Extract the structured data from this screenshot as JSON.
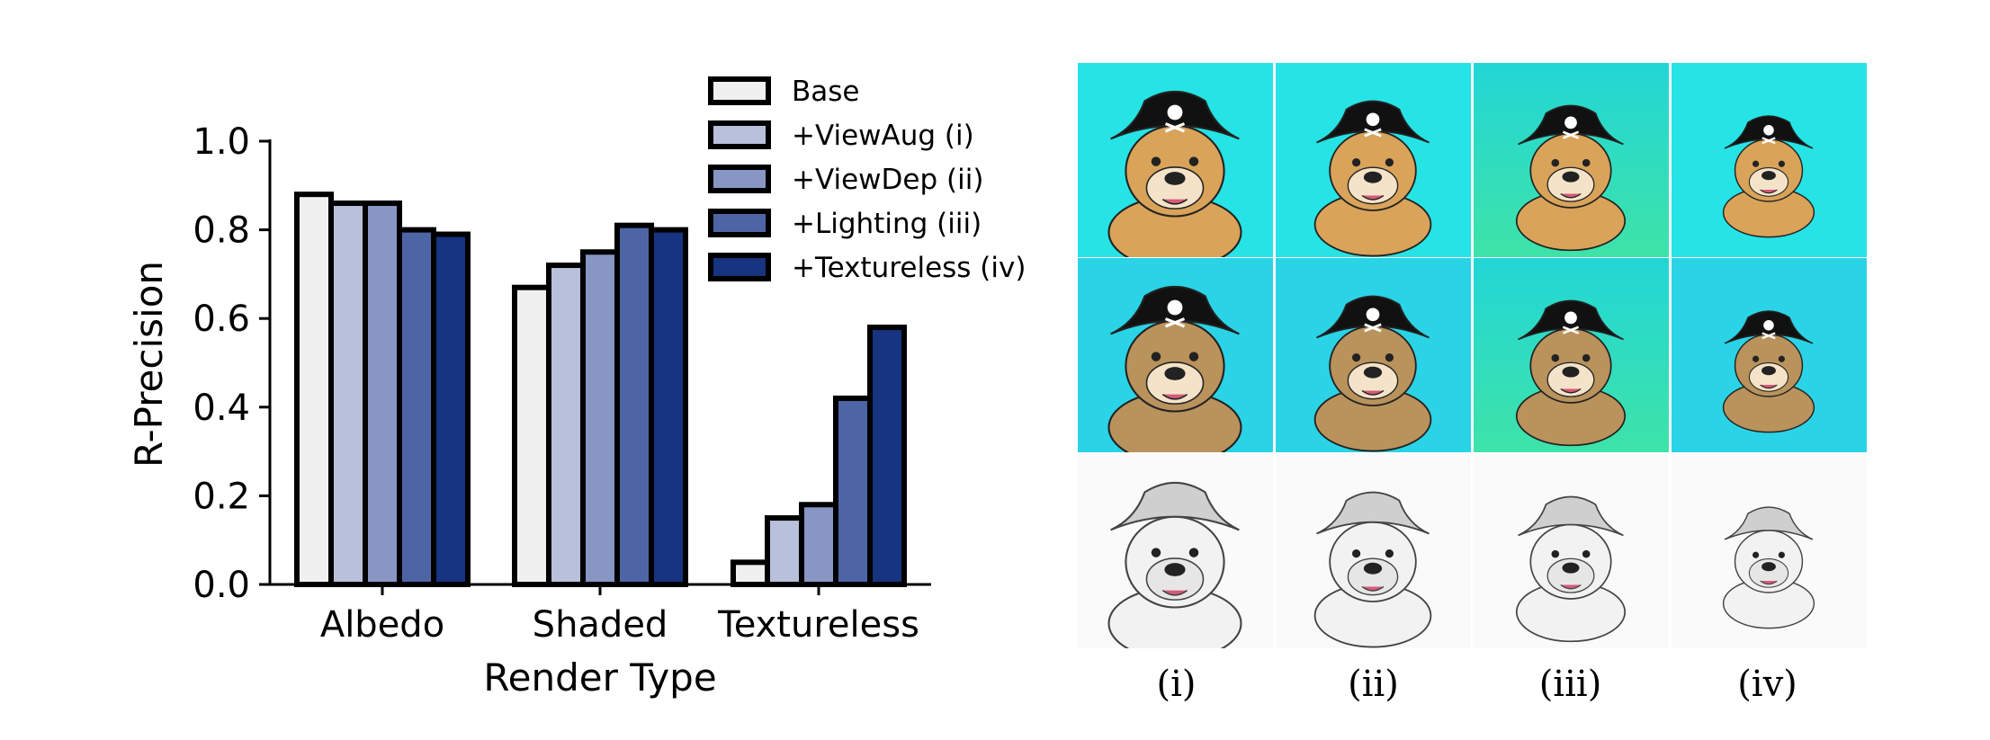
{
  "chart_data": {
    "type": "bar",
    "title": "",
    "xlabel": "Render Type",
    "ylabel": "R-Precision",
    "ylim": [
      0,
      1.0
    ],
    "yticks": [
      "0.0",
      "0.2",
      "0.4",
      "0.6",
      "0.8",
      "1.0"
    ],
    "categories": [
      "Albedo",
      "Shaded",
      "Textureless"
    ],
    "legend_position": "top-right",
    "grid": false,
    "series": [
      {
        "name": "Base",
        "color": "#f0f0f0",
        "values": [
          0.88,
          0.67,
          0.05
        ]
      },
      {
        "name": "+ViewAug (i)",
        "color": "#b8c0dc",
        "values": [
          0.86,
          0.72,
          0.15
        ]
      },
      {
        "name": "+ViewDep (ii)",
        "color": "#8896c4",
        "values": [
          0.86,
          0.75,
          0.18
        ]
      },
      {
        "name": "+Lighting (iii)",
        "color": "#4e65a5",
        "values": [
          0.8,
          0.81,
          0.42
        ]
      },
      {
        "name": "+Textureless (iv)",
        "color": "#16347f",
        "values": [
          0.79,
          0.8,
          0.58
        ]
      }
    ]
  },
  "image_panel": {
    "column_labels": [
      "(i)",
      "(ii)",
      "(iii)",
      "(iv)"
    ],
    "row_backgrounds": [
      "#26e3e5",
      "#2bd3e6",
      "#ffffff"
    ],
    "hat_color": "#111111",
    "dog_color": "#d9a35a"
  }
}
